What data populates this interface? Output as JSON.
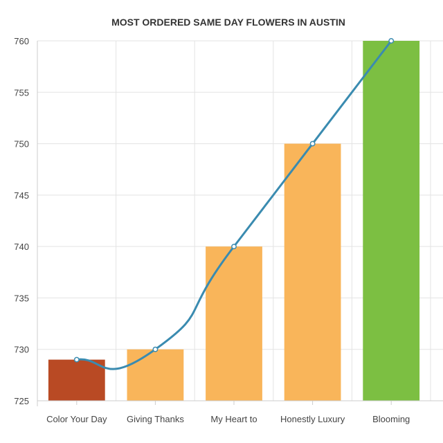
{
  "chart_data": {
    "type": "bar",
    "title": "MOST ORDERED SAME DAY FLOWERS IN AUSTIN",
    "xlabel": "",
    "ylabel": "",
    "categories": [
      "Color Your Day",
      "Giving Thanks",
      "My Heart to",
      "Honestly Luxury",
      "Blooming"
    ],
    "values": [
      729,
      730,
      740,
      750,
      760
    ],
    "bar_colors": [
      "#b94a24",
      "#f9b55a",
      "#f9b55a",
      "#f9b55a",
      "#7cbf42"
    ],
    "line_series": {
      "values": [
        729,
        730,
        740,
        750,
        760
      ],
      "color": "#3a8bb0"
    },
    "ylim": [
      725,
      760
    ],
    "yticks": [
      "760",
      "755",
      "750",
      "745",
      "740",
      "735",
      "730",
      "725"
    ],
    "grid": true,
    "legend": "none"
  }
}
